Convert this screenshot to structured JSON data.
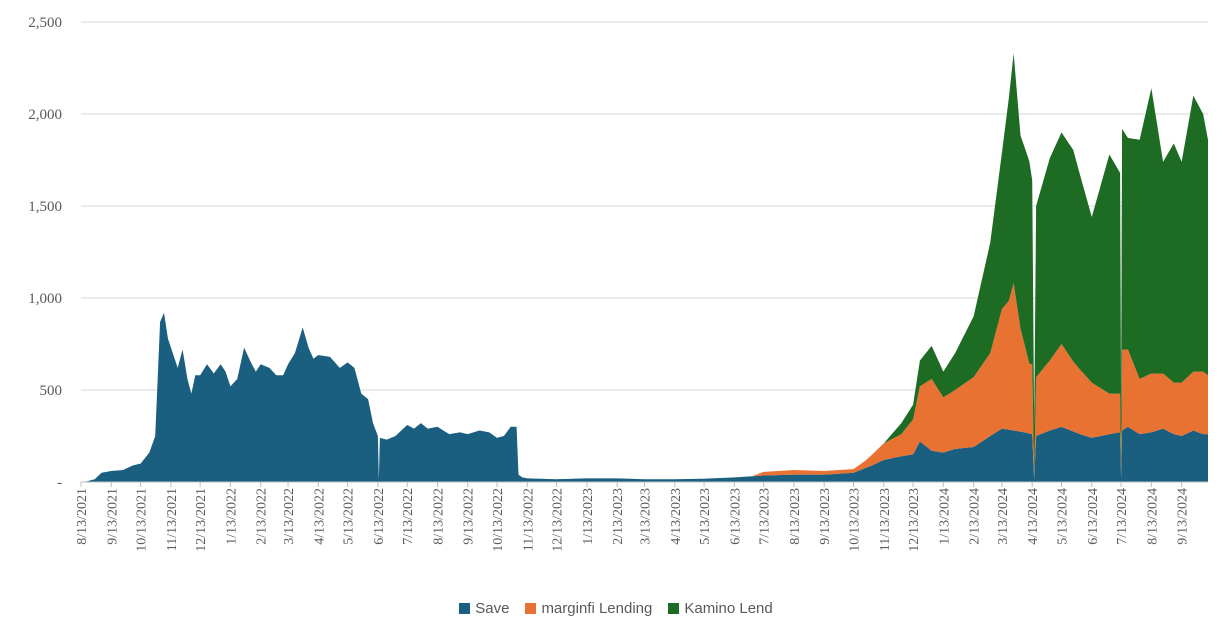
{
  "chart_data": {
    "type": "area",
    "stacked": true,
    "title": "",
    "xlabel": "",
    "ylabel": "",
    "ylim": [
      0,
      2500
    ],
    "y_ticks": [
      "-",
      "500",
      "1,000",
      "1,500",
      "2,000",
      "2,500"
    ],
    "x_ticks": [
      "8/13/2021",
      "9/13/2021",
      "10/13/2021",
      "11/13/2021",
      "12/13/2021",
      "1/13/2022",
      "2/13/2022",
      "3/13/2022",
      "4/13/2022",
      "5/13/2022",
      "6/13/2022",
      "7/13/2022",
      "8/13/2022",
      "9/13/2022",
      "10/13/2022",
      "11/13/2022",
      "12/13/2022",
      "1/13/2023",
      "2/13/2023",
      "3/13/2023",
      "4/13/2023",
      "5/13/2023",
      "6/13/2023",
      "7/13/2023",
      "8/13/2023",
      "9/13/2023",
      "10/13/2023",
      "11/13/2023",
      "12/13/2023",
      "1/13/2024",
      "2/13/2024",
      "3/13/2024",
      "4/13/2024",
      "5/13/2024",
      "6/13/2024",
      "7/13/2024",
      "8/13/2024",
      "9/13/2024"
    ],
    "grid": true,
    "legend_position": "bottom",
    "series": [
      {
        "name": "Save",
        "color": "#1a5f80",
        "points": [
          [
            "2021-08-13",
            0
          ],
          [
            "2021-08-20",
            5
          ],
          [
            "2021-08-27",
            15
          ],
          [
            "2021-09-03",
            50
          ],
          [
            "2021-09-13",
            60
          ],
          [
            "2021-09-25",
            65
          ],
          [
            "2021-10-05",
            90
          ],
          [
            "2021-10-13",
            100
          ],
          [
            "2021-10-22",
            160
          ],
          [
            "2021-10-28",
            250
          ],
          [
            "2021-11-02",
            870
          ],
          [
            "2021-11-06",
            920
          ],
          [
            "2021-11-10",
            780
          ],
          [
            "2021-11-15",
            700
          ],
          [
            "2021-11-20",
            620
          ],
          [
            "2021-11-25",
            720
          ],
          [
            "2021-11-30",
            560
          ],
          [
            "2021-12-04",
            480
          ],
          [
            "2021-12-08",
            580
          ],
          [
            "2021-12-13",
            580
          ],
          [
            "2021-12-20",
            640
          ],
          [
            "2021-12-27",
            590
          ],
          [
            "2022-01-03",
            640
          ],
          [
            "2022-01-08",
            600
          ],
          [
            "2022-01-13",
            520
          ],
          [
            "2022-01-20",
            560
          ],
          [
            "2022-01-27",
            730
          ],
          [
            "2022-02-03",
            650
          ],
          [
            "2022-02-08",
            600
          ],
          [
            "2022-02-13",
            640
          ],
          [
            "2022-02-22",
            620
          ],
          [
            "2022-03-01",
            580
          ],
          [
            "2022-03-08",
            580
          ],
          [
            "2022-03-13",
            640
          ],
          [
            "2022-03-20",
            700
          ],
          [
            "2022-03-28",
            840
          ],
          [
            "2022-04-03",
            730
          ],
          [
            "2022-04-08",
            670
          ],
          [
            "2022-04-13",
            690
          ],
          [
            "2022-04-25",
            680
          ],
          [
            "2022-05-05",
            620
          ],
          [
            "2022-05-13",
            650
          ],
          [
            "2022-05-20",
            620
          ],
          [
            "2022-05-27",
            480
          ],
          [
            "2022-06-03",
            450
          ],
          [
            "2022-06-08",
            320
          ],
          [
            "2022-06-13",
            250
          ],
          [
            "2022-06-14",
            10
          ],
          [
            "2022-06-15",
            240
          ],
          [
            "2022-06-22",
            230
          ],
          [
            "2022-07-01",
            250
          ],
          [
            "2022-07-13",
            310
          ],
          [
            "2022-07-20",
            290
          ],
          [
            "2022-07-27",
            320
          ],
          [
            "2022-08-03",
            290
          ],
          [
            "2022-08-13",
            300
          ],
          [
            "2022-08-25",
            260
          ],
          [
            "2022-09-05",
            270
          ],
          [
            "2022-09-13",
            260
          ],
          [
            "2022-09-25",
            280
          ],
          [
            "2022-10-05",
            270
          ],
          [
            "2022-10-13",
            240
          ],
          [
            "2022-10-20",
            250
          ],
          [
            "2022-10-27",
            300
          ],
          [
            "2022-11-02",
            300
          ],
          [
            "2022-11-04",
            40
          ],
          [
            "2022-11-08",
            25
          ],
          [
            "2022-11-13",
            20
          ],
          [
            "2022-12-13",
            15
          ],
          [
            "2023-01-13",
            20
          ],
          [
            "2023-02-13",
            20
          ],
          [
            "2023-03-13",
            15
          ],
          [
            "2023-04-13",
            15
          ],
          [
            "2023-05-13",
            18
          ],
          [
            "2023-06-13",
            25
          ],
          [
            "2023-07-13",
            35
          ],
          [
            "2023-08-13",
            40
          ],
          [
            "2023-09-13",
            40
          ],
          [
            "2023-10-13",
            50
          ],
          [
            "2023-11-01",
            90
          ],
          [
            "2023-11-13",
            120
          ],
          [
            "2023-12-01",
            140
          ],
          [
            "2023-12-13",
            150
          ],
          [
            "2023-12-20",
            220
          ],
          [
            "2024-01-01",
            170
          ],
          [
            "2024-01-13",
            160
          ],
          [
            "2024-01-25",
            180
          ],
          [
            "2024-02-13",
            190
          ],
          [
            "2024-03-01",
            250
          ],
          [
            "2024-03-13",
            290
          ],
          [
            "2024-03-25",
            280
          ],
          [
            "2024-04-05",
            270
          ],
          [
            "2024-04-13",
            260
          ],
          [
            "2024-04-15",
            10
          ],
          [
            "2024-04-17",
            250
          ],
          [
            "2024-05-01",
            280
          ],
          [
            "2024-05-13",
            300
          ],
          [
            "2024-06-01",
            260
          ],
          [
            "2024-06-13",
            240
          ],
          [
            "2024-07-01",
            260
          ],
          [
            "2024-07-12",
            270
          ],
          [
            "2024-07-13",
            20
          ],
          [
            "2024-07-14",
            280
          ],
          [
            "2024-07-20",
            300
          ],
          [
            "2024-08-01",
            260
          ],
          [
            "2024-08-13",
            270
          ],
          [
            "2024-08-25",
            290
          ],
          [
            "2024-09-05",
            260
          ],
          [
            "2024-09-13",
            250
          ],
          [
            "2024-09-25",
            280
          ],
          [
            "2024-10-05",
            260
          ],
          [
            "2024-10-10",
            260
          ]
        ]
      },
      {
        "name": "marginfi Lending",
        "color": "#e87232",
        "points": [
          [
            "2023-07-01",
            0
          ],
          [
            "2023-07-13",
            20
          ],
          [
            "2023-08-13",
            25
          ],
          [
            "2023-09-13",
            20
          ],
          [
            "2023-10-13",
            20
          ],
          [
            "2023-10-25",
            40
          ],
          [
            "2023-11-13",
            90
          ],
          [
            "2023-12-01",
            120
          ],
          [
            "2023-12-13",
            190
          ],
          [
            "2023-12-20",
            300
          ],
          [
            "2024-01-01",
            390
          ],
          [
            "2024-01-13",
            300
          ],
          [
            "2024-01-25",
            320
          ],
          [
            "2024-02-13",
            380
          ],
          [
            "2024-03-01",
            450
          ],
          [
            "2024-03-13",
            650
          ],
          [
            "2024-03-20",
            700
          ],
          [
            "2024-03-25",
            800
          ],
          [
            "2024-04-01",
            560
          ],
          [
            "2024-04-10",
            380
          ],
          [
            "2024-04-13",
            380
          ],
          [
            "2024-04-15",
            5
          ],
          [
            "2024-04-17",
            320
          ],
          [
            "2024-05-01",
            380
          ],
          [
            "2024-05-13",
            450
          ],
          [
            "2024-05-25",
            380
          ],
          [
            "2024-06-13",
            300
          ],
          [
            "2024-07-01",
            220
          ],
          [
            "2024-07-12",
            210
          ],
          [
            "2024-07-13",
            5
          ],
          [
            "2024-07-14",
            440
          ],
          [
            "2024-07-20",
            420
          ],
          [
            "2024-08-01",
            300
          ],
          [
            "2024-08-13",
            320
          ],
          [
            "2024-08-25",
            300
          ],
          [
            "2024-09-05",
            280
          ],
          [
            "2024-09-13",
            290
          ],
          [
            "2024-09-25",
            320
          ],
          [
            "2024-10-05",
            340
          ],
          [
            "2024-10-10",
            320
          ]
        ]
      },
      {
        "name": "Kamino Lend",
        "color": "#1e6b24",
        "points": [
          [
            "2023-11-13",
            0
          ],
          [
            "2023-12-01",
            60
          ],
          [
            "2023-12-13",
            80
          ],
          [
            "2023-12-20",
            140
          ],
          [
            "2024-01-01",
            180
          ],
          [
            "2024-01-13",
            140
          ],
          [
            "2024-01-25",
            200
          ],
          [
            "2024-02-13",
            330
          ],
          [
            "2024-03-01",
            600
          ],
          [
            "2024-03-13",
            850
          ],
          [
            "2024-03-20",
            1100
          ],
          [
            "2024-03-25",
            1250
          ],
          [
            "2024-04-01",
            1050
          ],
          [
            "2024-04-10",
            1100
          ],
          [
            "2024-04-13",
            1000
          ],
          [
            "2024-04-15",
            300
          ],
          [
            "2024-04-17",
            930
          ],
          [
            "2024-05-01",
            1100
          ],
          [
            "2024-05-13",
            1150
          ],
          [
            "2024-05-25",
            1150
          ],
          [
            "2024-06-13",
            900
          ],
          [
            "2024-07-01",
            1300
          ],
          [
            "2024-07-12",
            1200
          ],
          [
            "2024-07-13",
            400
          ],
          [
            "2024-07-14",
            1200
          ],
          [
            "2024-07-20",
            1150
          ],
          [
            "2024-08-01",
            1300
          ],
          [
            "2024-08-13",
            1550
          ],
          [
            "2024-08-25",
            1150
          ],
          [
            "2024-09-05",
            1300
          ],
          [
            "2024-09-13",
            1200
          ],
          [
            "2024-09-25",
            1500
          ],
          [
            "2024-10-05",
            1400
          ],
          [
            "2024-10-10",
            1280
          ]
        ]
      }
    ]
  }
}
